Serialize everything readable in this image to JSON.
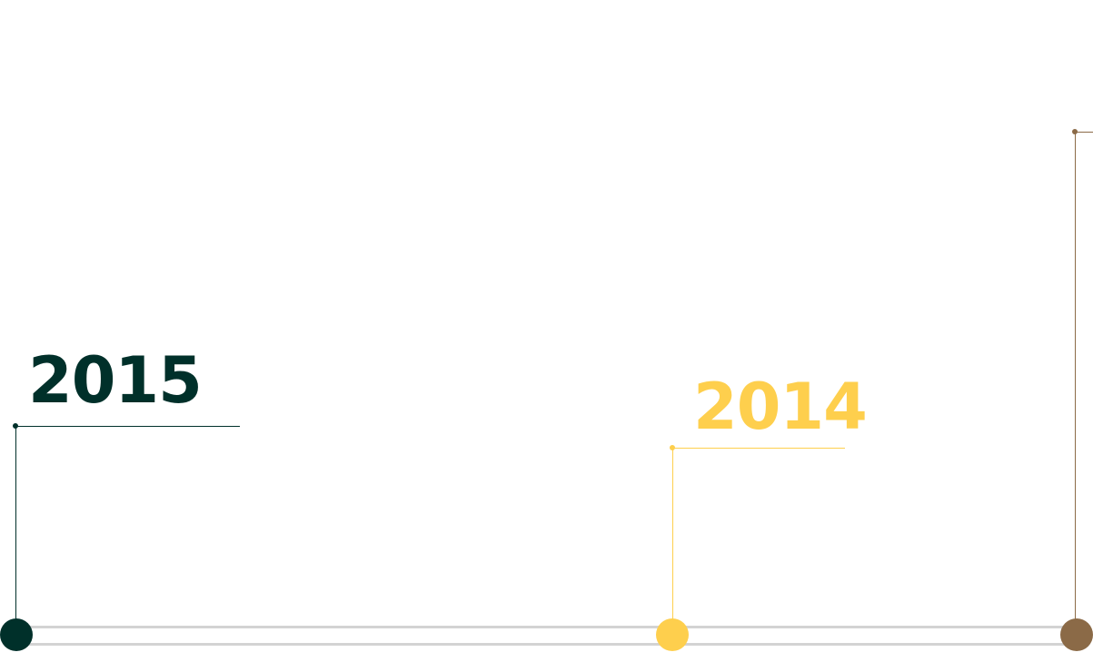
{
  "timeline": {
    "colors": {
      "track": "#d3d3d3",
      "dark_green": "#00302a",
      "yellow": "#fecf4d",
      "brown": "#8b6a47"
    },
    "milestones": [
      {
        "year": "2015",
        "color": "#00302a"
      },
      {
        "year": "2014",
        "color": "#fecf4d"
      },
      {
        "year": "",
        "color": "#8b6a47"
      }
    ]
  }
}
